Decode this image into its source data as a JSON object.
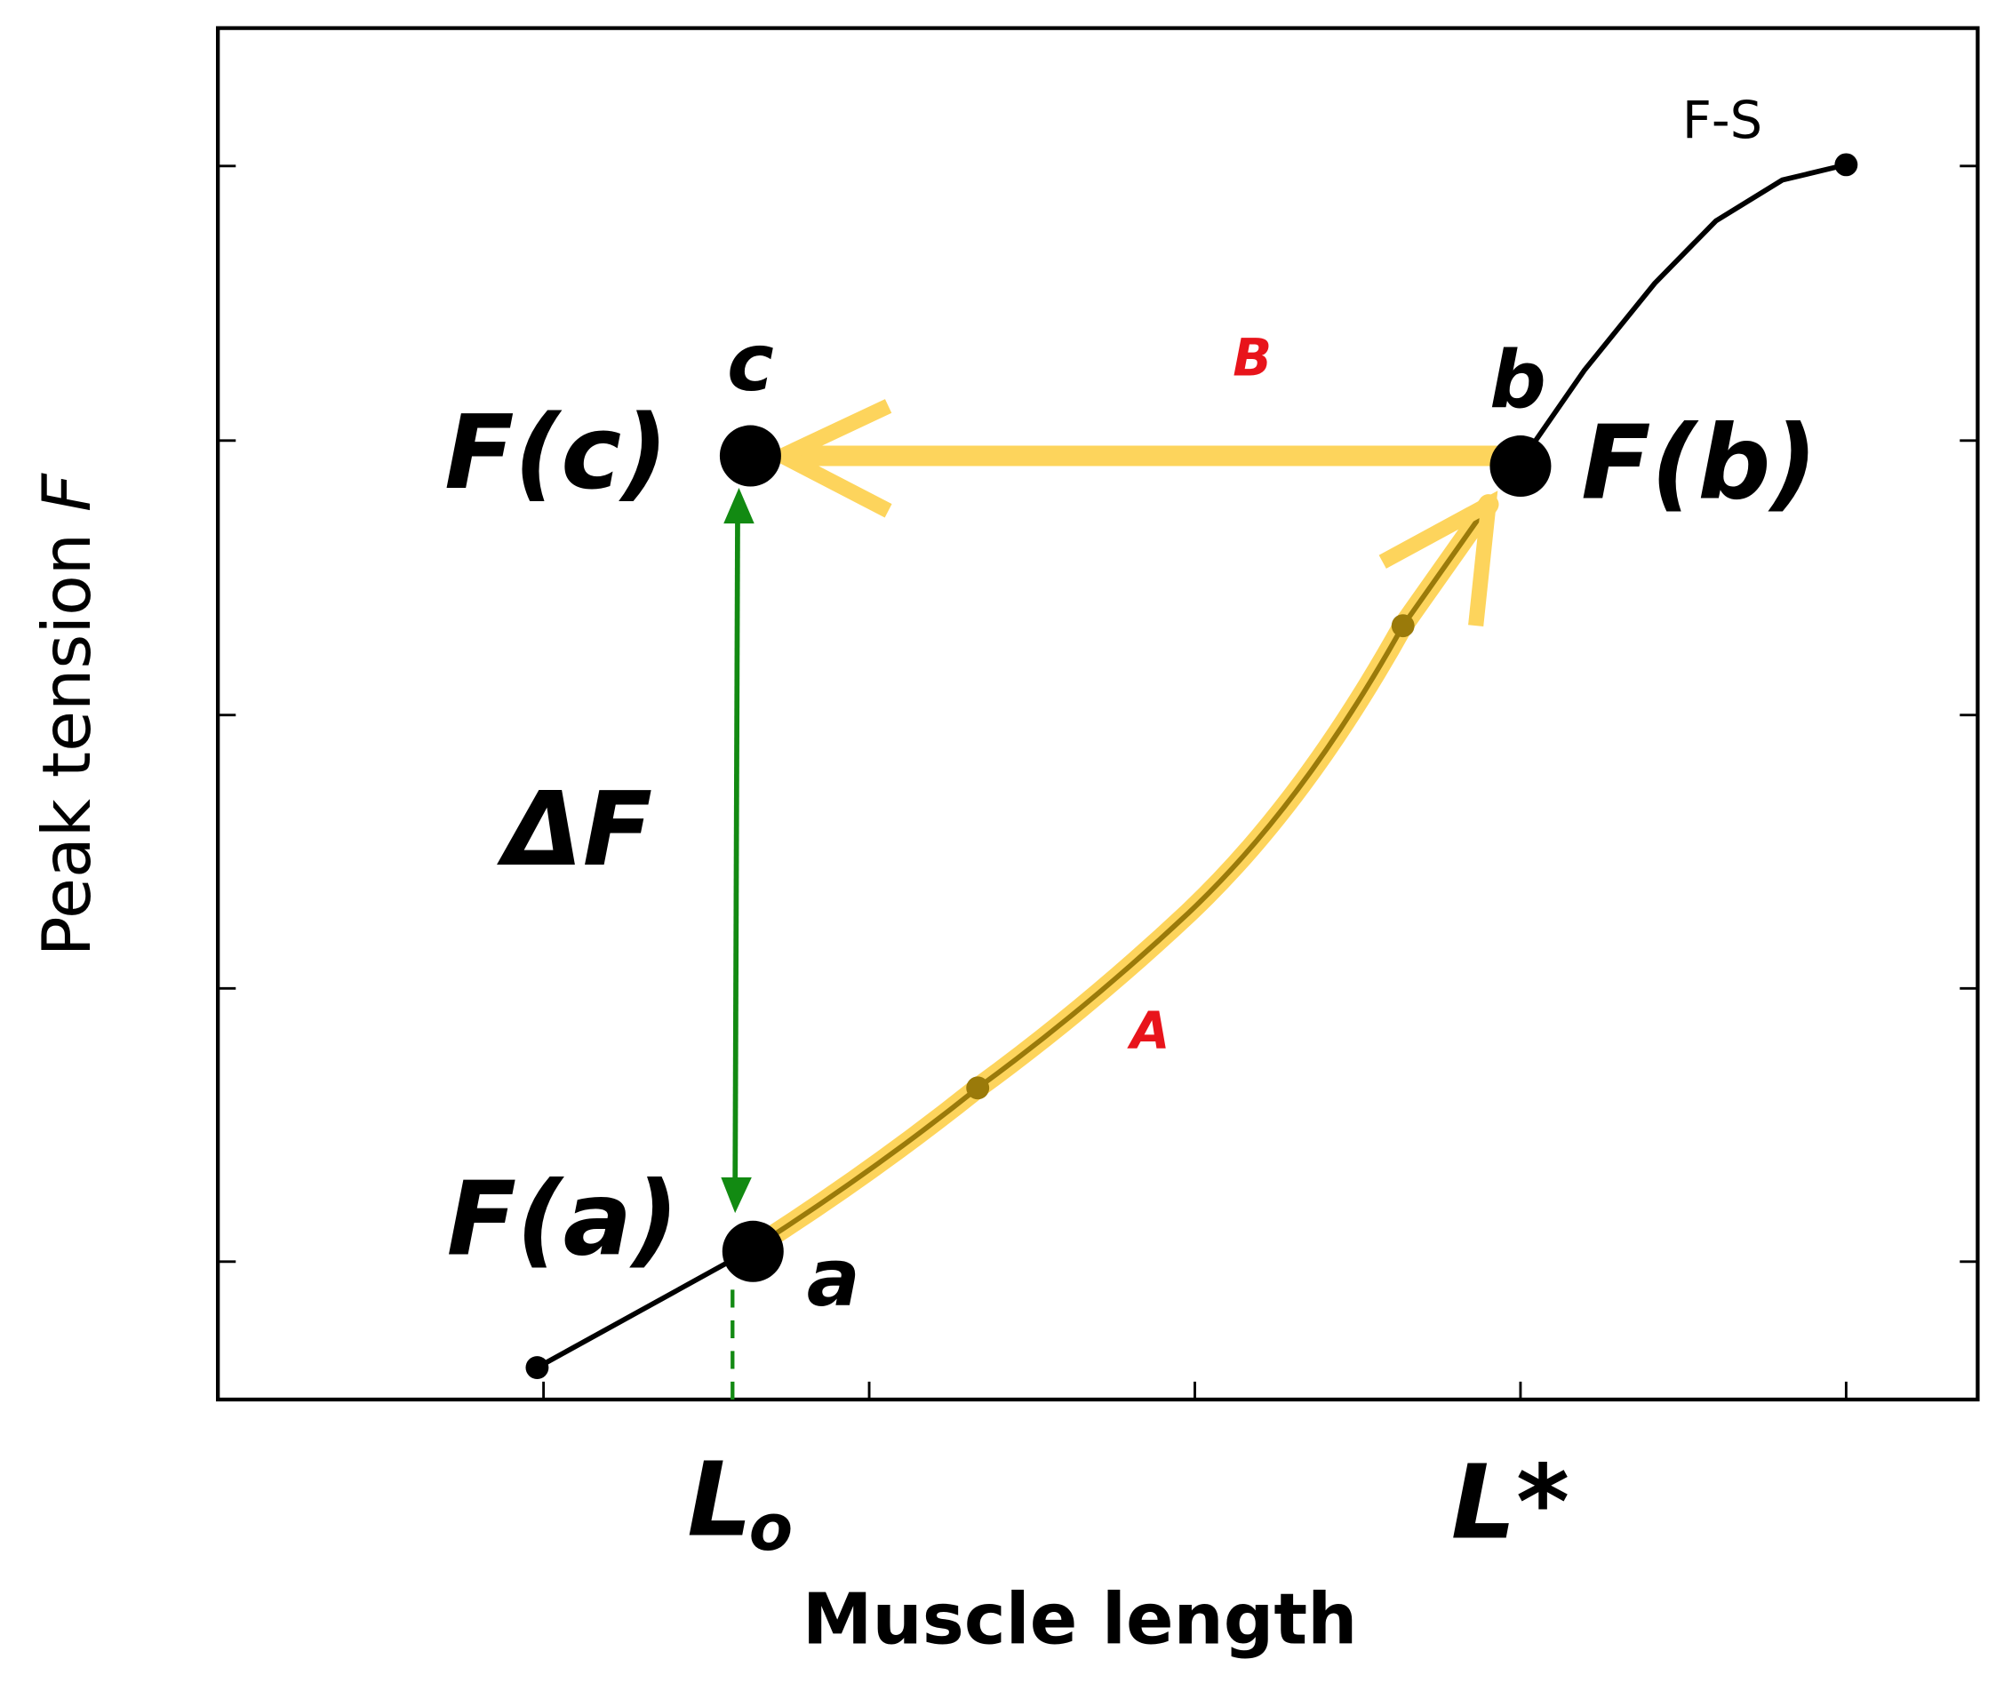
{
  "axes": {
    "x_label": "Muscle length",
    "y_label": {
      "text": "Peak tension",
      "variable": "F"
    },
    "x_ticks": {
      "lo": {
        "letter": "L",
        "subscript": "o"
      },
      "star": "L*"
    }
  },
  "curve_label": "F-S",
  "points": {
    "a": {
      "label": "a",
      "force": "F(a)"
    },
    "b": {
      "label": "b",
      "force": "F(b)"
    },
    "c": {
      "label": "c",
      "force": "F(c)"
    }
  },
  "delta": "ΔF",
  "paths": {
    "A": "A",
    "B": "B"
  }
}
